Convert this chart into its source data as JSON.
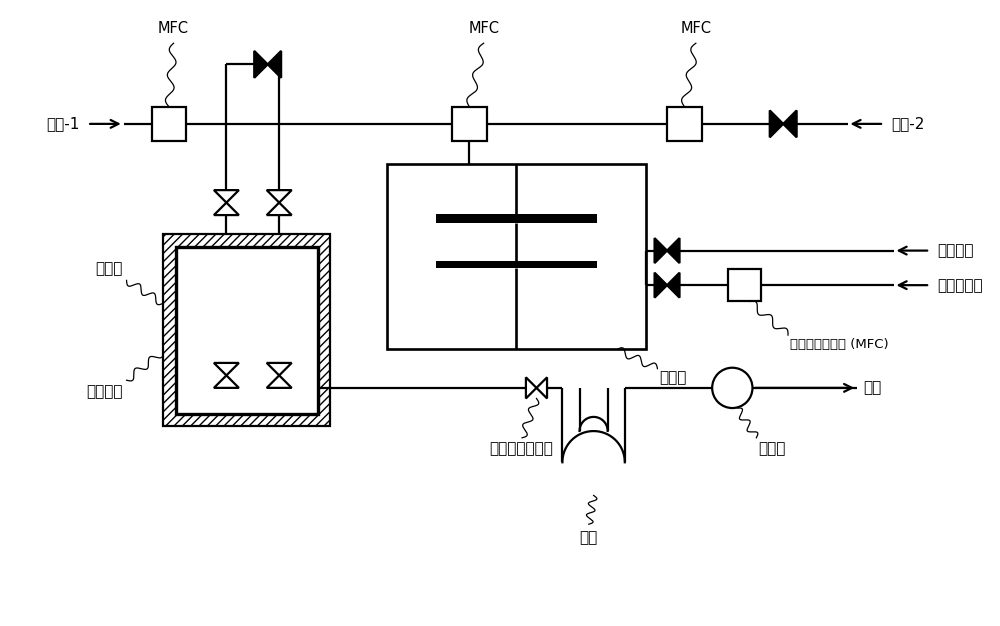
{
  "bg_color": "#ffffff",
  "labels": {
    "carrier1": "载气-1",
    "carrier2": "载气-2",
    "mfc1": "MFC",
    "mfc2": "MFC",
    "mfc3": "MFC",
    "heater": "加热器",
    "source": "原料容器",
    "chamber": "成膜室",
    "purge": "吹扫气体",
    "reactive": "反应性气体",
    "mfc_label": "质量流量控制器 (MFC)",
    "apc": "自动压力控制器",
    "cold_trap": "冷阱",
    "vacuum": "真空泵",
    "exhaust": "排气"
  }
}
